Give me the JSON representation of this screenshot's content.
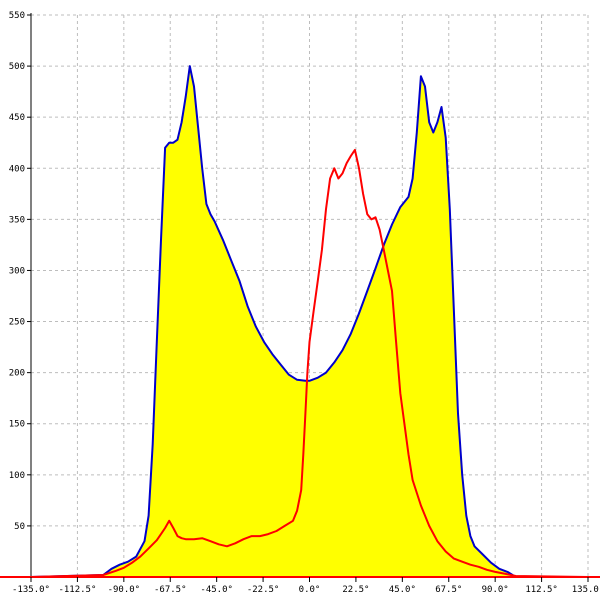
{
  "chart_data": {
    "type": "area",
    "title": "",
    "xlabel": "",
    "ylabel": "",
    "xlim": [
      -135,
      135
    ],
    "ylim": [
      0,
      550
    ],
    "grid": true,
    "x_ticks": [
      -135,
      -112.5,
      -90,
      -67.5,
      -45,
      -22.5,
      0,
      22.5,
      45,
      67.5,
      90,
      112.5,
      135
    ],
    "x_tick_labels": [
      "-135.0°",
      "-112.5°",
      "-90.0°",
      "-67.5°",
      "-45.0°",
      "-22.5°",
      "0.0°",
      "22.5°",
      "45.0°",
      "67.5°",
      "90.0°",
      "112.5°",
      "135.0°"
    ],
    "y_ticks": [
      50,
      100,
      150,
      200,
      250,
      300,
      350,
      400,
      450,
      500,
      550
    ],
    "y_tick_labels": [
      "50",
      "100",
      "150",
      "200",
      "250",
      "300",
      "350",
      "400",
      "450",
      "500",
      "550"
    ],
    "series": [
      {
        "color": "#0000cc",
        "fill": "#ffff00",
        "x": [
          -135,
          -100,
          -96,
          -92,
          -88,
          -84,
          -80,
          -78,
          -76,
          -74,
          -72,
          -70,
          -68,
          -66,
          -64,
          -62,
          -60,
          -58,
          -56,
          -54,
          -52,
          -50,
          -48,
          -46,
          -42,
          -38,
          -34,
          -30,
          -26,
          -22,
          -18,
          -14,
          -10,
          -6,
          -2,
          0,
          4,
          8,
          12,
          16,
          20,
          24,
          28,
          32,
          36,
          40,
          44,
          48,
          50,
          52,
          54,
          56,
          58,
          60,
          62,
          64,
          66,
          68,
          70,
          72,
          74,
          76,
          78,
          80,
          84,
          88,
          92,
          96,
          100,
          135
        ],
        "y": [
          0,
          2,
          8,
          12,
          15,
          20,
          35,
          60,
          130,
          230,
          330,
          420,
          425,
          425,
          428,
          445,
          470,
          500,
          480,
          440,
          400,
          365,
          355,
          348,
          330,
          310,
          290,
          265,
          245,
          230,
          218,
          208,
          198,
          193,
          192,
          192,
          195,
          200,
          210,
          222,
          238,
          258,
          280,
          302,
          325,
          345,
          362,
          372,
          390,
          435,
          490,
          480,
          445,
          435,
          445,
          460,
          430,
          360,
          260,
          160,
          100,
          60,
          40,
          30,
          22,
          14,
          8,
          5,
          0,
          0
        ]
      },
      {
        "color": "#ff0000",
        "x": [
          -135,
          -100,
          -94,
          -90,
          -86,
          -82,
          -78,
          -74,
          -72,
          -70,
          -68,
          -66,
          -64,
          -62,
          -60,
          -56,
          -52,
          -48,
          -44,
          -40,
          -36,
          -32,
          -28,
          -24,
          -20,
          -16,
          -12,
          -8,
          -6,
          -4,
          -3,
          -2,
          -1,
          0,
          2,
          4,
          6,
          8,
          10,
          12,
          14,
          16,
          18,
          20,
          22,
          24,
          26,
          28,
          30,
          32,
          34,
          36,
          38,
          40,
          42,
          44,
          46,
          48,
          50,
          54,
          58,
          62,
          66,
          70,
          74,
          78,
          82,
          86,
          90,
          95,
          100,
          135
        ],
        "y": [
          0,
          2,
          6,
          9,
          14,
          20,
          28,
          36,
          42,
          48,
          55,
          48,
          40,
          38,
          37,
          37,
          38,
          35,
          32,
          30,
          33,
          37,
          40,
          40,
          42,
          45,
          50,
          55,
          65,
          85,
          120,
          160,
          200,
          230,
          260,
          290,
          320,
          360,
          390,
          400,
          390,
          395,
          405,
          412,
          418,
          400,
          375,
          355,
          350,
          352,
          340,
          320,
          300,
          280,
          230,
          180,
          150,
          120,
          95,
          70,
          50,
          35,
          25,
          18,
          15,
          12,
          10,
          7,
          5,
          3,
          1,
          0
        ]
      }
    ]
  }
}
